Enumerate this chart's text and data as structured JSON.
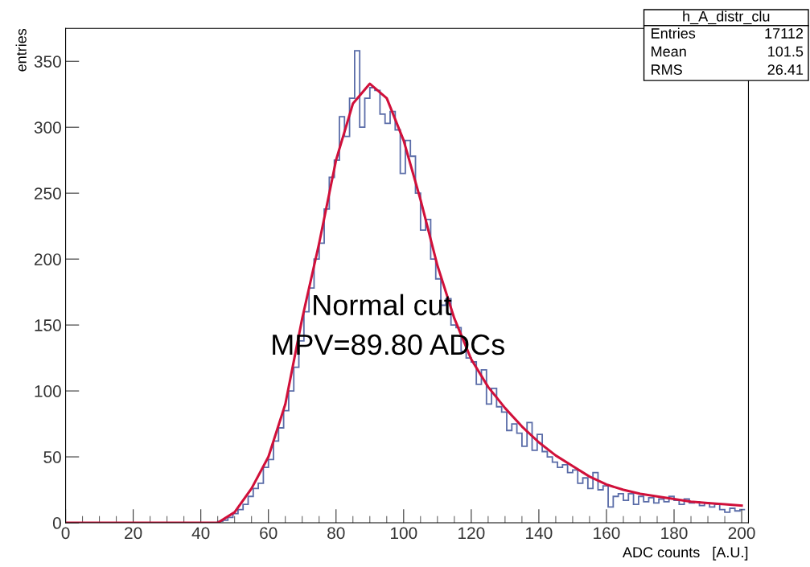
{
  "chart_data": {
    "type": "histogram",
    "xlabel": "ADC counts   [A.U.]",
    "ylabel": "entries",
    "bins": [
      0,
      1.5,
      3,
      4.5,
      6,
      7.5,
      9,
      10.5,
      12,
      13.5,
      15,
      16.5,
      18,
      19.5,
      21,
      22.5,
      24,
      25.5,
      27,
      28.5,
      30,
      31.5,
      33,
      34.5,
      36,
      37.5,
      39,
      40.5,
      42,
      43.5,
      45,
      46.5,
      48,
      49.5,
      51,
      52.5,
      54,
      55.5,
      57,
      58.5,
      60,
      61.5,
      63,
      64.5,
      66,
      67.5,
      69,
      70.5,
      72,
      73.5,
      75,
      76.5,
      78,
      79.5,
      81,
      82.5,
      84,
      85.5,
      87,
      88.5,
      90,
      91.5,
      93,
      94.5,
      96,
      97.5,
      99,
      100.5,
      102,
      103.5,
      105,
      106.5,
      108,
      109.5,
      111,
      112.5,
      114,
      115.5,
      117,
      118.5,
      120,
      121.5,
      123,
      124.5,
      126,
      127.5,
      129,
      130.5,
      132,
      133.5,
      135,
      136.5,
      138,
      139.5,
      141,
      142.5,
      144,
      145.5,
      147,
      148.5,
      150,
      151.5,
      153,
      154.5,
      156,
      157.5,
      159,
      160.5,
      162,
      163.5,
      165,
      166.5,
      168,
      169.5,
      171,
      172.5,
      174,
      175.5,
      177,
      178.5,
      180,
      181.5,
      183,
      184.5,
      186,
      187.5,
      189,
      190.5,
      192,
      193.5,
      195,
      196.5,
      198,
      199.5,
      201
    ],
    "color": "#5a6ca8",
    "values": [
      0,
      0,
      0,
      0,
      0,
      0,
      0,
      0,
      0,
      0,
      0,
      0,
      0,
      0,
      0,
      0,
      0,
      0,
      0,
      0,
      0,
      0,
      0,
      0,
      0,
      0,
      0,
      0,
      0,
      0,
      1,
      2,
      4,
      7,
      10,
      14,
      20,
      26,
      30,
      42,
      48,
      62,
      72,
      85,
      100,
      118,
      138,
      160,
      178,
      200,
      212,
      238,
      262,
      275,
      308,
      293,
      322,
      358,
      300,
      322,
      330,
      328,
      310,
      303,
      312,
      298,
      265,
      290,
      278,
      250,
      222,
      230,
      200,
      185,
      165,
      170,
      150,
      148,
      130,
      125,
      122,
      105,
      116,
      90,
      102,
      88,
      84,
      70,
      75,
      68,
      58,
      76,
      55,
      67,
      54,
      50,
      46,
      42,
      44,
      38,
      40,
      30,
      34,
      26,
      38,
      25,
      28,
      12,
      20,
      22,
      17,
      22,
      14,
      20,
      16,
      19,
      15,
      18,
      16,
      20,
      17,
      14,
      18,
      15,
      16,
      13,
      15,
      12,
      14,
      10,
      8,
      11,
      9,
      10
    ],
    "series": [
      {
        "type": "line",
        "color": "#d0103a",
        "x": [
          0,
          45,
          50,
          55,
          60,
          65,
          70,
          75,
          80,
          85,
          90,
          95,
          100,
          105,
          110,
          115,
          120,
          125,
          130,
          135,
          140,
          145,
          150,
          155,
          160,
          165,
          170,
          175,
          180,
          185,
          190,
          195,
          200
        ],
        "values": [
          0,
          0,
          8,
          26,
          50,
          90,
          155,
          212,
          275,
          318,
          333,
          322,
          290,
          245,
          195,
          155,
          124,
          103,
          87,
          73,
          61,
          51,
          43,
          35,
          29,
          25,
          22,
          20,
          18,
          16,
          15,
          14,
          13
        ]
      }
    ],
    "xlim": [
      0,
      202
    ],
    "ylim": [
      0,
      375
    ],
    "xticks": [
      0,
      20,
      40,
      60,
      80,
      100,
      120,
      140,
      160,
      180,
      200
    ],
    "yticks": [
      0,
      50,
      100,
      150,
      200,
      250,
      300,
      350
    ],
    "grid": false,
    "annotations": [
      "Normal cut",
      "MPV=89.80 ADCs",
      "h_A_distr_clu",
      "Entries",
      "17112",
      "Mean",
      "101.5",
      "RMS",
      "26.41"
    ]
  }
}
